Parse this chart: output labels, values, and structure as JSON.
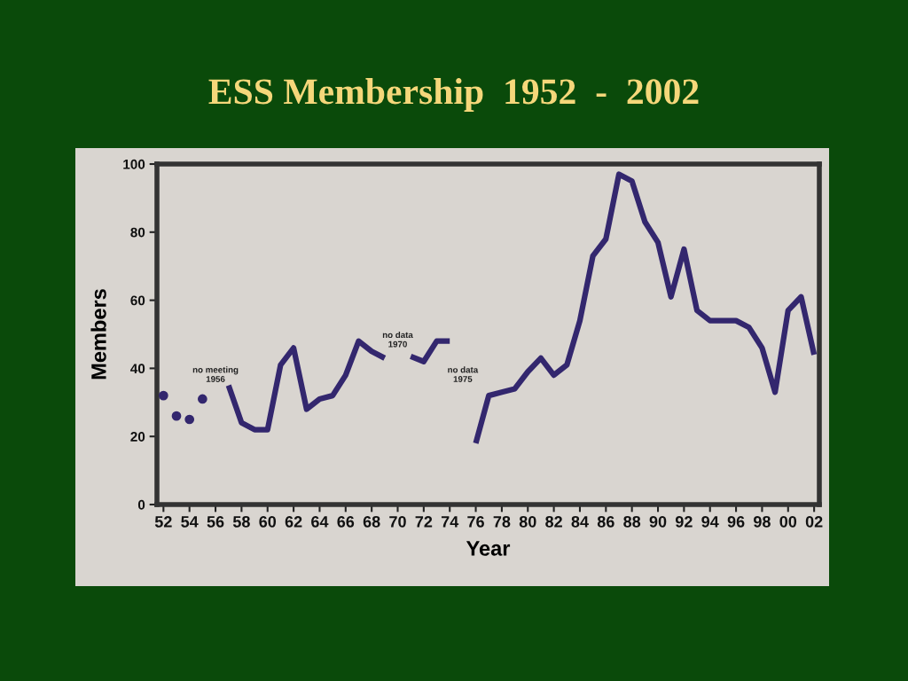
{
  "chart_data": {
    "type": "line",
    "title": "ESS Membership  1952  -  2002",
    "xlabel": "Year",
    "ylabel": "Members",
    "x": [
      1952,
      1953,
      1954,
      1955,
      1956,
      1957,
      1958,
      1959,
      1960,
      1961,
      1962,
      1963,
      1964,
      1965,
      1966,
      1967,
      1968,
      1969,
      1970,
      1971,
      1972,
      1973,
      1974,
      1975,
      1976,
      1977,
      1978,
      1979,
      1980,
      1981,
      1982,
      1983,
      1984,
      1985,
      1986,
      1987,
      1988,
      1989,
      1990,
      1991,
      1992,
      1993,
      1994,
      1995,
      1996,
      1997,
      1998,
      1999,
      2000,
      2001,
      2002
    ],
    "series": [
      {
        "type": "scatter",
        "color": "#33276e",
        "marker": "circle",
        "values": [
          32,
          26,
          25,
          31,
          null,
          null,
          null,
          null,
          null,
          null,
          null,
          null,
          null,
          null,
          null,
          null,
          null,
          null,
          null,
          null,
          null,
          null,
          null,
          null,
          null,
          null,
          null,
          null,
          null,
          null,
          null,
          null,
          null,
          null,
          null,
          null,
          null,
          null,
          null,
          null,
          null,
          null,
          null,
          null,
          null,
          null,
          null,
          null,
          null,
          null,
          null
        ]
      },
      {
        "color": "#33276e",
        "values": [
          null,
          null,
          null,
          null,
          null,
          35,
          24,
          22,
          22,
          41,
          46,
          28,
          31,
          32,
          38,
          48,
          45,
          43,
          null,
          43.5,
          42,
          48,
          48,
          null,
          18,
          32,
          33,
          34,
          39,
          43,
          38,
          41,
          54,
          73,
          78,
          97,
          95,
          83,
          77,
          61,
          75,
          57,
          54,
          54,
          54,
          52,
          46,
          33,
          57,
          61,
          44
        ]
      }
    ],
    "xlim": [
      1951.5,
      2002.4
    ],
    "ylim": [
      0,
      100
    ],
    "xticks": [
      {
        "value": 1952,
        "label": "52"
      },
      {
        "value": 1954,
        "label": "54"
      },
      {
        "value": 1956,
        "label": "56"
      },
      {
        "value": 1958,
        "label": "58"
      },
      {
        "value": 1960,
        "label": "60"
      },
      {
        "value": 1962,
        "label": "62"
      },
      {
        "value": 1964,
        "label": "64"
      },
      {
        "value": 1966,
        "label": "66"
      },
      {
        "value": 1968,
        "label": "68"
      },
      {
        "value": 1970,
        "label": "70"
      },
      {
        "value": 1972,
        "label": "72"
      },
      {
        "value": 1974,
        "label": "74"
      },
      {
        "value": 1976,
        "label": "76"
      },
      {
        "value": 1978,
        "label": "78"
      },
      {
        "value": 1980,
        "label": "80"
      },
      {
        "value": 1982,
        "label": "82"
      },
      {
        "value": 1984,
        "label": "84"
      },
      {
        "value": 1986,
        "label": "86"
      },
      {
        "value": 1988,
        "label": "88"
      },
      {
        "value": 1990,
        "label": "90"
      },
      {
        "value": 1992,
        "label": "92"
      },
      {
        "value": 1994,
        "label": "94"
      },
      {
        "value": 1996,
        "label": "96"
      },
      {
        "value": 1998,
        "label": "98"
      },
      {
        "value": 2000,
        "label": "00"
      },
      {
        "value": 2002,
        "label": "02"
      }
    ],
    "yticks": [
      0,
      20,
      40,
      60,
      80,
      100
    ],
    "annotations": [
      "no meeting\n1956",
      "no data\n1970",
      "no data\n1975"
    ],
    "grid": false,
    "marker": "none",
    "line_style": "solid"
  }
}
